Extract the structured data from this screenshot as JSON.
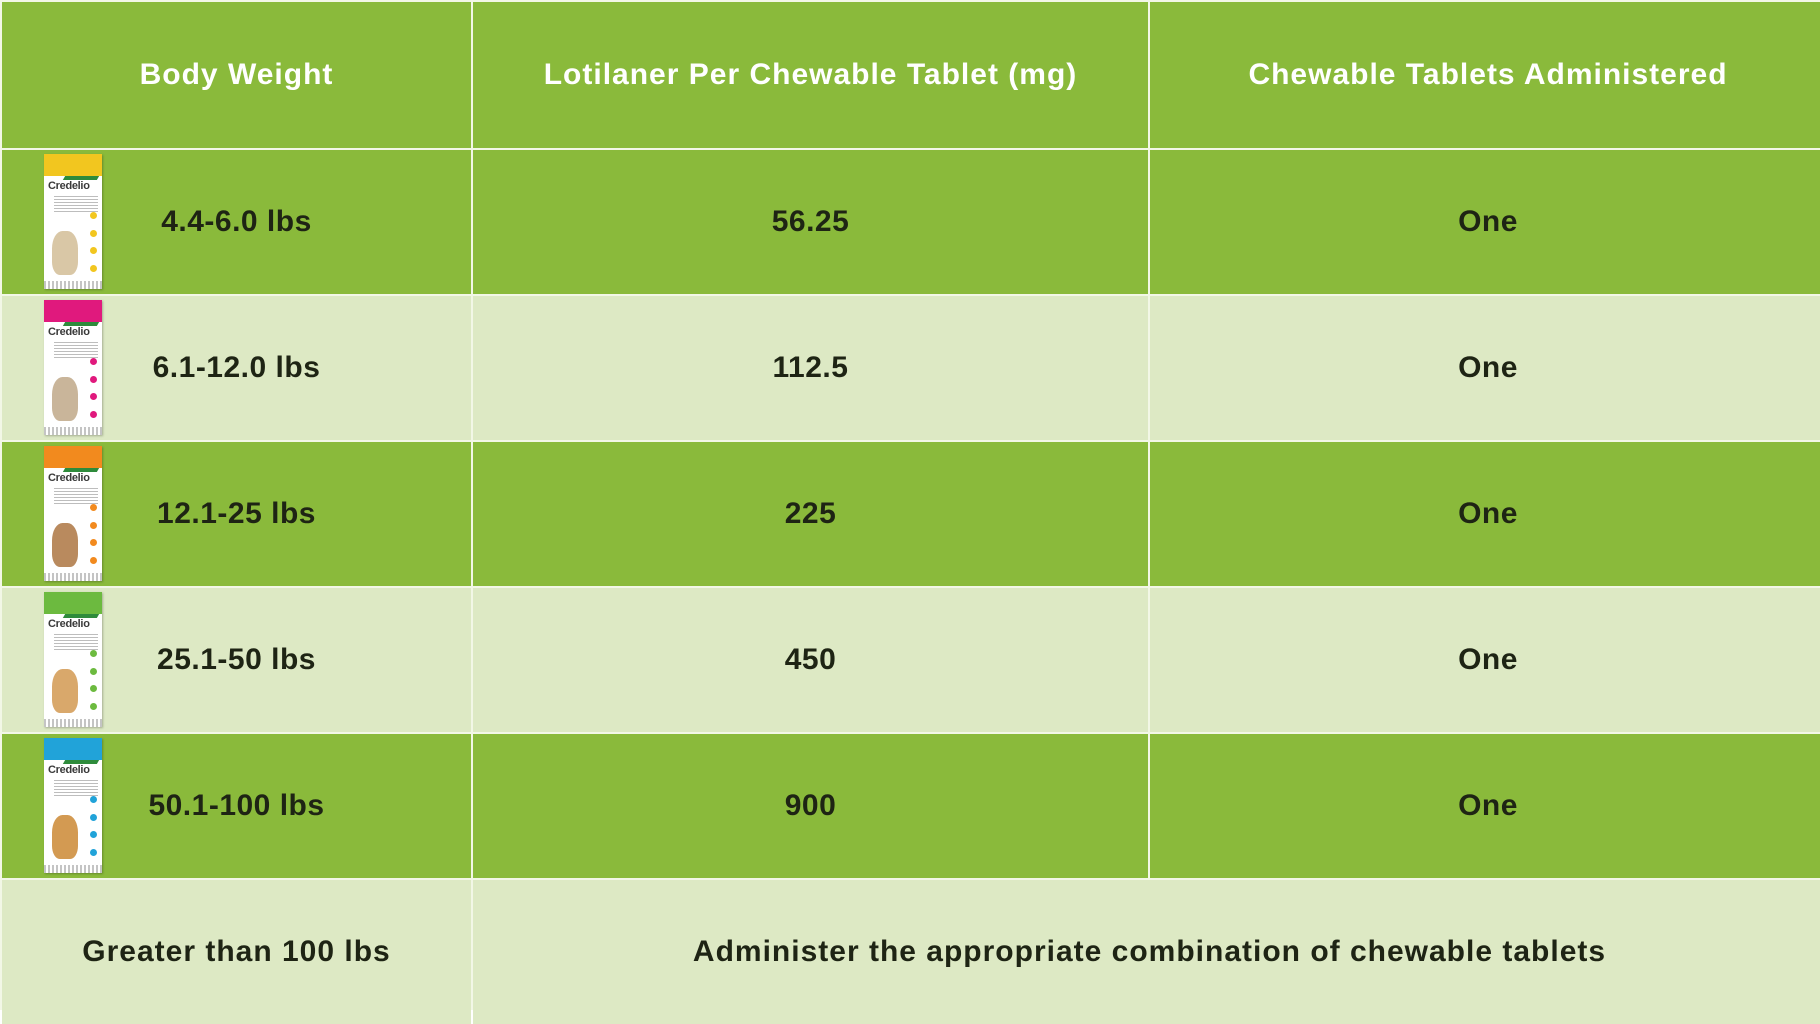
{
  "headers": {
    "body_weight": "Body Weight",
    "lotilaner": "Lotilaner Per Chewable Tablet (mg)",
    "tablets": "Chewable Tablets Administered"
  },
  "rows": [
    {
      "weight": "4.4-6.0 lbs",
      "mg": "56.25",
      "tablets": "One",
      "package_brand": "Credelio",
      "package_color": "#f2c61f",
      "dog_color": "#d9c7a6"
    },
    {
      "weight": "6.1-12.0 lbs",
      "mg": "112.5",
      "tablets": "One",
      "package_brand": "Credelio",
      "package_color": "#e0197d",
      "dog_color": "#c9b59a"
    },
    {
      "weight": "12.1-25 lbs",
      "mg": "225",
      "tablets": "One",
      "package_brand": "Credelio",
      "package_color": "#f28a1e",
      "dog_color": "#b98a5e"
    },
    {
      "weight": "25.1-50 lbs",
      "mg": "450",
      "tablets": "One",
      "package_brand": "Credelio",
      "package_color": "#6cba3f",
      "dog_color": "#d9a86b"
    },
    {
      "weight": "50.1-100 lbs",
      "mg": "900",
      "tablets": "One",
      "package_brand": "Credelio",
      "package_color": "#21a3d9",
      "dog_color": "#d39a52"
    }
  ],
  "footer": {
    "weight": "Greater than 100 lbs",
    "instruction": "Administer the appropriate combination of chewable tablets"
  },
  "colors": {
    "dark_row": "#8aba3b",
    "light_row": "#dde9c4",
    "header_text": "#ffffff",
    "body_text": "#1e2414"
  }
}
